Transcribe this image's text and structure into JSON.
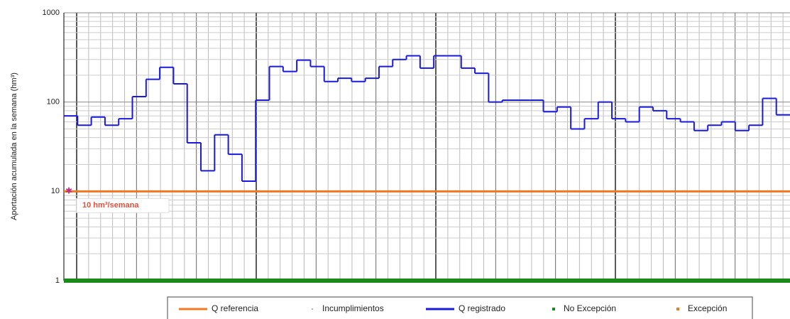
{
  "chart_data": {
    "type": "line",
    "y_label": "Aportación acumulada en la semana (hm³)",
    "log_scale": true,
    "ylim": [
      1,
      1000
    ],
    "yticks": [
      1,
      10,
      100,
      1000
    ],
    "grid": true,
    "categories": [
      null,
      null,
      null,
      null,
      null,
      null,
      null,
      null,
      null,
      null,
      null,
      null,
      null,
      null,
      null,
      null,
      null,
      null,
      null,
      null,
      null,
      null,
      null,
      null,
      null,
      null,
      null,
      null,
      null,
      null,
      null,
      null,
      null,
      null,
      null,
      null,
      null,
      null,
      null,
      null,
      null,
      null,
      null,
      null,
      null,
      null,
      null,
      null,
      null,
      null,
      null,
      null,
      null
    ],
    "series": [
      {
        "name": "Q registrado",
        "color": "#1a1adc",
        "values": [
          70,
          55,
          68,
          55,
          65,
          115,
          180,
          245,
          160,
          35,
          17,
          43,
          26,
          13,
          105,
          250,
          220,
          295,
          250,
          170,
          185,
          170,
          185,
          250,
          300,
          330,
          240,
          330,
          330,
          240,
          210,
          100,
          105,
          105,
          105,
          78,
          88,
          50,
          65,
          100,
          65,
          60,
          88,
          80,
          65,
          60,
          48,
          55,
          60,
          48,
          55,
          110,
          72
        ]
      }
    ],
    "reference": {
      "name": "Q referencia",
      "value": 10,
      "label": "10 hm³/semana",
      "color": "#f07820"
    },
    "legend": [
      {
        "name": "Q referencia",
        "color": "#f07820",
        "symbol": "line"
      },
      {
        "name": "Incumplimientos",
        "color": "#999999",
        "symbol": "dot"
      },
      {
        "name": "Q registrado",
        "color": "#1a1adc",
        "symbol": "line"
      },
      {
        "name": "No Excepción",
        "color": "#1a8a1a",
        "symbol": "square"
      },
      {
        "name": "Excepción",
        "color": "#f07820",
        "symbol": "square"
      }
    ]
  }
}
